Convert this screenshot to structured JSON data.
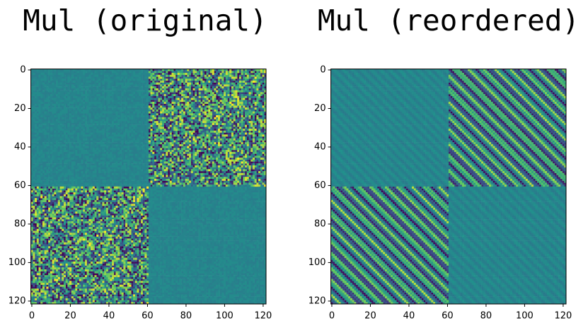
{
  "chart_data": [
    {
      "type": "heatmap",
      "title": "Mul (original)",
      "xlim": [
        -0.5,
        121.5
      ],
      "ylim": [
        121.5,
        -0.5
      ],
      "xticks": [
        0,
        20,
        40,
        60,
        80,
        100,
        120
      ],
      "yticks": [
        0,
        20,
        40,
        60,
        80,
        100,
        120
      ]
    },
    {
      "type": "heatmap",
      "title": "Mul (reordered)",
      "xlim": [
        -0.5,
        121.5
      ],
      "ylim": [
        121.5,
        -0.5
      ],
      "xticks": [
        0,
        20,
        40,
        60,
        80,
        100,
        120
      ],
      "yticks": [
        0,
        20,
        40,
        60,
        80,
        100,
        120
      ]
    }
  ]
}
